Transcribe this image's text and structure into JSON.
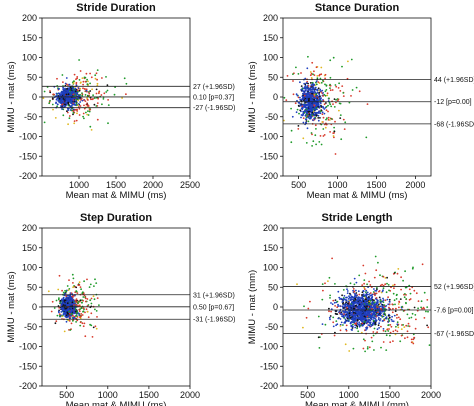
{
  "chart_data": [
    {
      "type": "scatter",
      "title": "Stride Duration",
      "xlabel": "Mean mat & MIMU (ms)",
      "ylabel": "MIMU - mat (ms)",
      "xlim": [
        500,
        2500
      ],
      "ylim": [
        -200,
        200
      ],
      "xticks": [
        1000,
        1500,
        2000,
        2500
      ],
      "yticks": [
        -200,
        -150,
        -100,
        -50,
        0,
        50,
        100,
        150,
        200
      ],
      "grid": false,
      "cloud": {
        "x_center": 850,
        "x_spread": 120,
        "y_spread": 18
      },
      "series_colors": [
        "#1f3fbf",
        "#d83a2c",
        "#1f9a2a",
        "#111111",
        "#e0b81f"
      ],
      "reference_lines": [
        {
          "value": 27,
          "label": "27 (+1.96SD)"
        },
        {
          "value": 0.1,
          "label": "0.10 [p=0.37]"
        },
        {
          "value": -27,
          "label": "-27 (-1.96SD)"
        }
      ]
    },
    {
      "type": "scatter",
      "title": "Stance Duration",
      "xlabel": "Mean mat & MIMU (ms)",
      "ylabel": "MIMU - mat (ms)",
      "xlim": [
        300,
        2200
      ],
      "ylim": [
        -200,
        200
      ],
      "xticks": [
        500,
        1000,
        1500,
        2000
      ],
      "yticks": [
        -200,
        -150,
        -100,
        -50,
        0,
        50,
        100,
        150,
        200
      ],
      "grid": false,
      "cloud": {
        "x_center": 650,
        "x_spread": 110,
        "y_spread": 32
      },
      "series_colors": [
        "#1f3fbf",
        "#d83a2c",
        "#1f9a2a",
        "#111111",
        "#e0b81f"
      ],
      "reference_lines": [
        {
          "value": 44,
          "label": "44 (+1.96SD)"
        },
        {
          "value": -12,
          "label": "-12 [p=0.00]"
        },
        {
          "value": -68,
          "label": "-68 (-1.96SD)"
        }
      ]
    },
    {
      "type": "scatter",
      "title": "Step Duration",
      "xlabel": "Mean mat & MIMU (ms)",
      "ylabel": "MIMU - mat (ms)",
      "xlim": [
        200,
        2000
      ],
      "ylim": [
        -200,
        200
      ],
      "xticks": [
        500,
        1000,
        1500,
        2000
      ],
      "yticks": [
        -200,
        -150,
        -100,
        -50,
        0,
        50,
        100,
        150,
        200
      ],
      "grid": false,
      "cloud": {
        "x_center": 520,
        "x_spread": 70,
        "y_spread": 18
      },
      "series_colors": [
        "#1f3fbf",
        "#d83a2c",
        "#1f9a2a",
        "#111111",
        "#e0b81f"
      ],
      "reference_lines": [
        {
          "value": 31,
          "label": "31 (+1.96SD)"
        },
        {
          "value": 0.5,
          "label": "0.50 [p=0.67]"
        },
        {
          "value": -31,
          "label": "-31 (-1.96SD)"
        }
      ]
    },
    {
      "type": "scatter",
      "title": "Stride Length",
      "xlabel": "Mean mat & MIMU (mm)",
      "ylabel": "MIMU - mat (mm)",
      "xlim": [
        200,
        2000
      ],
      "ylim": [
        -200,
        200
      ],
      "xticks": [
        500,
        1000,
        1500,
        2000
      ],
      "yticks": [
        -200,
        -150,
        -100,
        -50,
        0,
        50,
        100,
        150,
        200
      ],
      "grid": false,
      "cloud": {
        "x_center": 1150,
        "x_spread": 230,
        "y_spread": 30
      },
      "series_colors": [
        "#1f3fbf",
        "#d83a2c",
        "#1f9a2a",
        "#111111",
        "#e0b81f"
      ],
      "reference_lines": [
        {
          "value": 52,
          "label": "52 (+1.96SD)"
        },
        {
          "value": -7.6,
          "label": "-7.6 [p=0.00]"
        },
        {
          "value": -67,
          "label": "-67 (-1.96SD)"
        }
      ]
    }
  ]
}
